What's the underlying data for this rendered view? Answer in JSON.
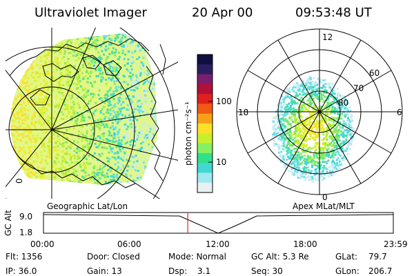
{
  "header": {
    "instrument": "Ultraviolet Imager",
    "date": "20 Apr 00",
    "time": "09:53:48 UT"
  },
  "colorbar": {
    "unit_label": "photon cm⁻²s⁻¹",
    "ticks": [
      "100",
      "10"
    ],
    "colors": [
      "#101040",
      "#2a1f5e",
      "#7a1f6e",
      "#b0103a",
      "#e0201e",
      "#f05a14",
      "#f8a018",
      "#fde02a",
      "#c8f02a",
      "#88f060",
      "#30e088",
      "#40d8d0",
      "#a0e8f0",
      "#e8f0f0"
    ]
  },
  "left_map": {
    "caption": "Geographic Lat/Lon",
    "edge_label": "0"
  },
  "right_map": {
    "caption": "Apex MLat/MLT",
    "mlt_labels": {
      "top": "12",
      "left": "18",
      "right": "6",
      "bottom": "0"
    },
    "lat_labels": [
      "60",
      "70",
      "80"
    ]
  },
  "altitude_plot": {
    "ylabel": "GC Alt",
    "yticks": [
      "9.0",
      "1.8"
    ],
    "xticks": [
      "00:00",
      "06:00",
      "12:00",
      "18:00",
      "23:59"
    ],
    "marker_time_hours": 9.9
  },
  "status": {
    "flt": "Flt: 1356",
    "ip": "IP: 36.0",
    "door": "Door: Closed",
    "gain": "Gain: 13",
    "mode": "Mode: Normal",
    "dsp_label": "Dsp:",
    "dsp_value": "3.1",
    "gcalt": "GC Alt: 5.3 Re",
    "seq": "Seq: 30",
    "glat_label": "GLat:",
    "glat_value": "79.7",
    "glon_label": "GLon:",
    "glon_value": "206.7"
  }
}
